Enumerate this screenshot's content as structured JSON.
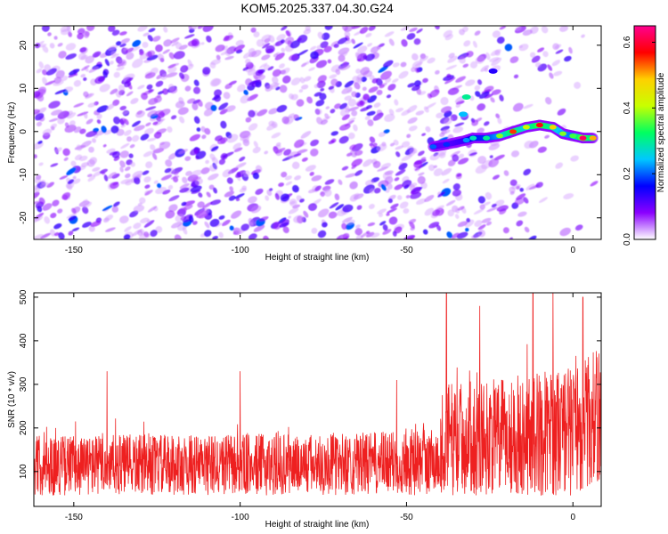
{
  "title": "KOM5.2025.337.04.30.G24",
  "chart_data": [
    {
      "type": "heatmap",
      "title": "KOM5.2025.337.04.30.G24",
      "xlabel": "Height of straight line (km)",
      "ylabel": "Frequency (Hz)",
      "xlim": [
        -162,
        8.5
      ],
      "ylim": [
        -25,
        24.5
      ],
      "xticks": [
        -150,
        -100,
        -50,
        0
      ],
      "xtick_labels": [
        "-150",
        "-100",
        "-50",
        "0"
      ],
      "yticks": [
        -20,
        -10,
        0,
        10,
        20
      ],
      "ytick_labels": [
        "-20",
        "-10",
        "0",
        "10",
        "20"
      ],
      "colorbar": {
        "label": "Normalized spectral amplitude",
        "range": [
          0.0,
          0.65
        ],
        "ticks": [
          0.0,
          0.2,
          0.4,
          0.6
        ],
        "tick_labels": [
          "0.0",
          "0.2",
          "0.4",
          "0.6"
        ],
        "colors": [
          "#ffffff",
          "#8a00ff",
          "#0000ff",
          "#00c8ff",
          "#00ff60",
          "#c8ff00",
          "#ffd000",
          "#ff0000",
          "#ff0090"
        ]
      },
      "features": [
        {
          "name": "background-noise",
          "x_range": [
            -162,
            -35
          ],
          "typical_amplitude": 0.1,
          "peak_amplitude": 0.2
        },
        {
          "name": "signal-track",
          "points": [
            {
              "x": -42,
              "y": -3.5,
              "amp": 0.2
            },
            {
              "x": -38,
              "y": -3.0,
              "amp": 0.18
            },
            {
              "x": -32,
              "y": -2.0,
              "amp": 0.22
            },
            {
              "x": -30,
              "y": -1.5,
              "amp": 0.28
            },
            {
              "x": -26,
              "y": -1.5,
              "amp": 0.3
            },
            {
              "x": -22,
              "y": -1.0,
              "amp": 0.38
            },
            {
              "x": -18,
              "y": 0.0,
              "amp": 0.55
            },
            {
              "x": -14,
              "y": 1.0,
              "amp": 0.42
            },
            {
              "x": -10,
              "y": 1.5,
              "amp": 0.58
            },
            {
              "x": -6,
              "y": 1.0,
              "amp": 0.48
            },
            {
              "x": -3,
              "y": -0.5,
              "amp": 0.38
            },
            {
              "x": 0,
              "y": -1.0,
              "amp": 0.35
            },
            {
              "x": 3,
              "y": -1.5,
              "amp": 0.62
            },
            {
              "x": 6,
              "y": -1.5,
              "amp": 0.5
            }
          ]
        }
      ]
    },
    {
      "type": "line",
      "xlabel": "Height of straight line (km)",
      "ylabel": "SNR (10 * v/v)",
      "xlim": [
        -162,
        8.5
      ],
      "ylim": [
        20,
        510
      ],
      "xticks": [
        -150,
        -100,
        -50,
        0
      ],
      "xtick_labels": [
        "-150",
        "-100",
        "-50",
        "0"
      ],
      "yticks": [
        100,
        200,
        300,
        400,
        500
      ],
      "ytick_labels": [
        "100",
        "200",
        "300",
        "400",
        "500"
      ],
      "series": [
        {
          "name": "SNR",
          "color": "#ee2020",
          "envelope": [
            {
              "x": -162,
              "mean": 115,
              "amplitude": 70
            },
            {
              "x": -110,
              "mean": 115,
              "amplitude": 70
            },
            {
              "x": -60,
              "mean": 118,
              "amplitude": 72
            },
            {
              "x": -40,
              "mean": 125,
              "amplitude": 80
            },
            {
              "x": -39,
              "mean": 175,
              "amplitude": 130
            },
            {
              "x": -20,
              "mean": 180,
              "amplitude": 135
            },
            {
              "x": 0,
              "mean": 195,
              "amplitude": 150
            },
            {
              "x": 8.5,
              "mean": 230,
              "amplitude": 160
            }
          ],
          "peaks": [
            {
              "x": -38,
              "y": 510
            },
            {
              "x": -28,
              "y": 480
            },
            {
              "x": -12,
              "y": 510
            },
            {
              "x": -6,
              "y": 520
            },
            {
              "x": 3,
              "y": 500
            },
            {
              "x": -100,
              "y": 330
            },
            {
              "x": -140,
              "y": 330
            },
            {
              "x": -53,
              "y": 310
            }
          ]
        }
      ]
    }
  ]
}
